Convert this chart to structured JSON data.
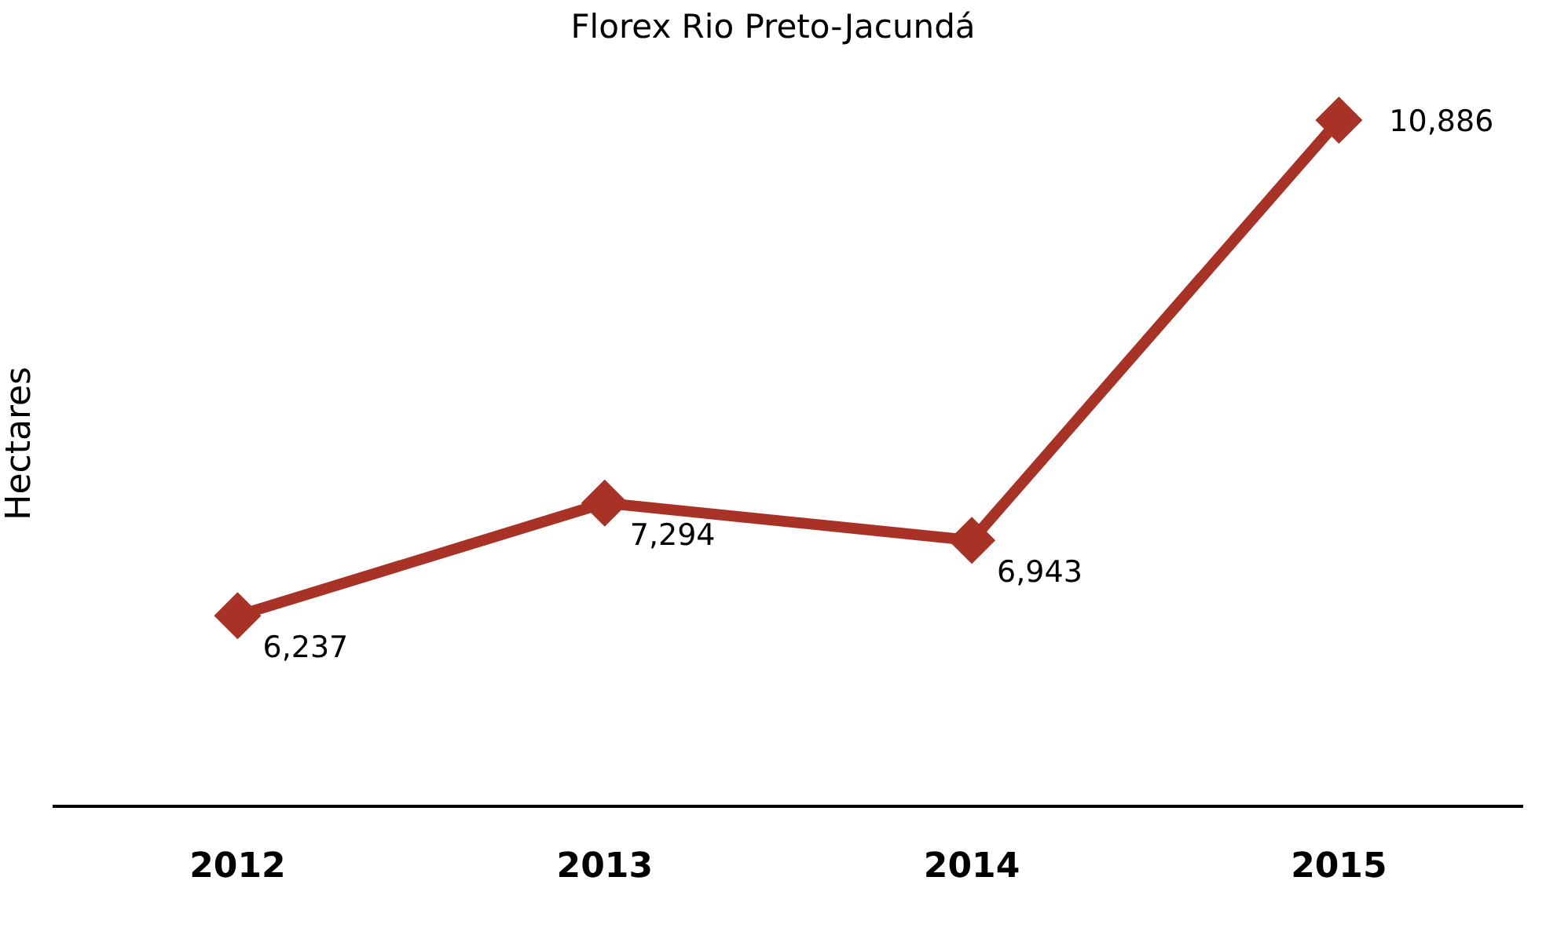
{
  "chart_data": {
    "type": "line",
    "title": "Florex Rio Preto-Jacundá",
    "ylabel": "Hectares",
    "categories": [
      "2012",
      "2013",
      "2014",
      "2015"
    ],
    "series": [
      {
        "color": "#a93226",
        "values": [
          6237,
          7294,
          6943,
          10886
        ],
        "value_labels": [
          "6,237",
          "7,294",
          "6,943",
          "10,886"
        ]
      }
    ],
    "marker": "diamond",
    "line_style": "solid",
    "tick_labels": "x"
  }
}
